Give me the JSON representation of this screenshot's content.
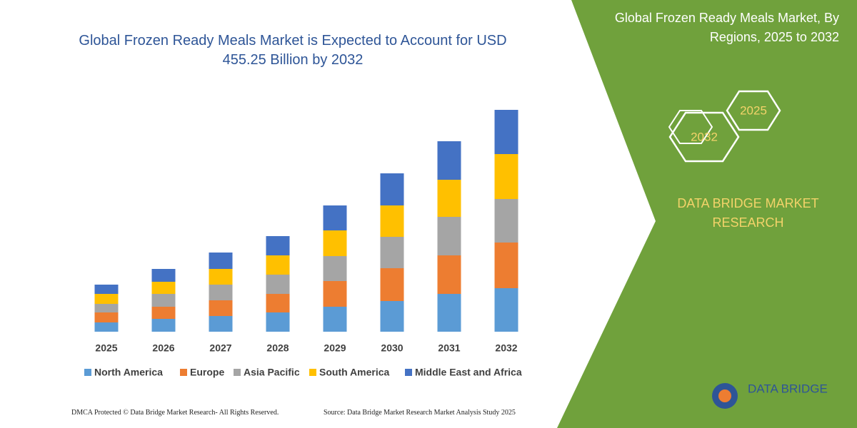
{
  "chart_data": {
    "type": "stacked_bar",
    "title": "Global Frozen Ready Meals Market is Expected to Account for USD 455.25 Billion by 2032",
    "categories": [
      "2025",
      "2026",
      "2027",
      "2028",
      "2029",
      "2030",
      "2031",
      "2032"
    ],
    "series": [
      {
        "name": "North America",
        "color": "#5b9bd5",
        "values": [
          13,
          18,
          22,
          27,
          35,
          43,
          53,
          61
        ]
      },
      {
        "name": "Europe",
        "color": "#ed7d31",
        "values": [
          14,
          17,
          22,
          26,
          36,
          46,
          54,
          64
        ]
      },
      {
        "name": "Asia Pacific",
        "color": "#a5a5a5",
        "values": [
          12,
          18,
          22,
          27,
          35,
          44,
          54,
          61
        ]
      },
      {
        "name": "South America",
        "color": "#ffc000",
        "values": [
          14,
          17,
          22,
          27,
          36,
          44,
          52,
          63
        ]
      },
      {
        "name": "Middle East and Africa",
        "color": "#4472c4",
        "values": [
          13,
          18,
          23,
          27,
          35,
          45,
          54,
          62
        ]
      }
    ],
    "ylim": [
      0,
      320
    ],
    "grid": false,
    "legend": "bottom"
  },
  "panel": {
    "title": "Global Frozen Ready Meals Market, By Regions, 2025 to 2032",
    "hexagons": [
      "2032",
      "2025"
    ],
    "brand": "DATA BRIDGE MARKET RESEARCH",
    "logo": "DATA BRIDGE"
  },
  "footer": {
    "left": "DMCA Protected © Data Bridge Market Research- All Rights Reserved.",
    "right": "Source: Data Bridge Market Research  Market Analysis Study 2025"
  }
}
